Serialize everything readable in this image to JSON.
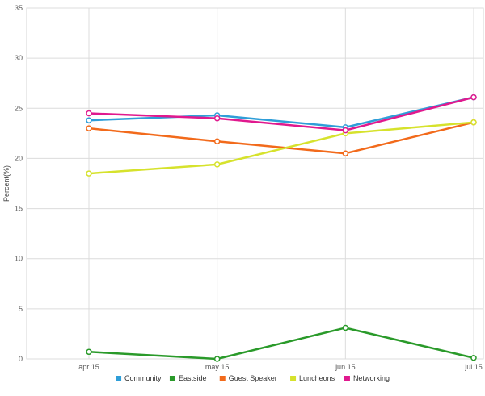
{
  "chart_data": {
    "type": "line",
    "title": "",
    "xlabel": "",
    "ylabel": "Percent(%)",
    "categories": [
      "apr 15",
      "may 15",
      "jun 15",
      "jul 15"
    ],
    "ylim": [
      0,
      35
    ],
    "yticks": [
      0,
      5,
      10,
      15,
      20,
      25,
      30,
      35
    ],
    "grid": true,
    "legend_position": "bottom",
    "series": [
      {
        "name": "Community",
        "color": "#2f9ed8",
        "values": [
          23.8,
          24.3,
          23.1,
          26.1
        ]
      },
      {
        "name": "Eastside",
        "color": "#2a9a2a",
        "values": [
          0.7,
          0.0,
          3.1,
          0.1
        ]
      },
      {
        "name": "Guest Speaker",
        "color": "#f26a1b",
        "values": [
          23.0,
          21.7,
          20.5,
          23.6
        ]
      },
      {
        "name": "Luncheons",
        "color": "#d6e22c",
        "values": [
          18.5,
          19.4,
          22.5,
          23.6
        ]
      },
      {
        "name": "Networking",
        "color": "#e0198e",
        "values": [
          24.5,
          24.0,
          22.8,
          26.1
        ]
      }
    ]
  }
}
